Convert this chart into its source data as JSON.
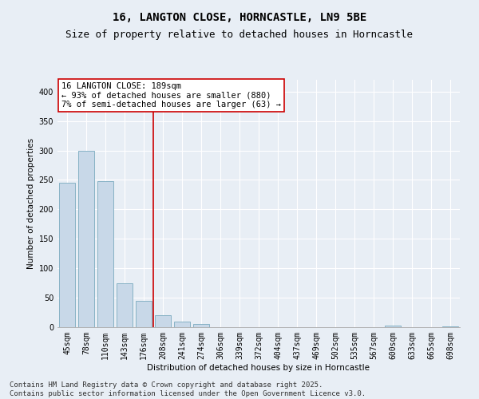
{
  "title_line1": "16, LANGTON CLOSE, HORNCASTLE, LN9 5BE",
  "title_line2": "Size of property relative to detached houses in Horncastle",
  "xlabel": "Distribution of detached houses by size in Horncastle",
  "ylabel": "Number of detached properties",
  "categories": [
    "45sqm",
    "78sqm",
    "110sqm",
    "143sqm",
    "176sqm",
    "208sqm",
    "241sqm",
    "274sqm",
    "306sqm",
    "339sqm",
    "372sqm",
    "404sqm",
    "437sqm",
    "469sqm",
    "502sqm",
    "535sqm",
    "567sqm",
    "600sqm",
    "633sqm",
    "665sqm",
    "698sqm"
  ],
  "values": [
    245,
    300,
    248,
    75,
    45,
    20,
    9,
    6,
    0,
    0,
    0,
    0,
    0,
    0,
    0,
    0,
    0,
    3,
    0,
    0,
    2
  ],
  "bar_color": "#c8d8e8",
  "bar_edge_color": "#7aaabf",
  "vline_x_index": 4,
  "vline_color": "#cc0000",
  "annotation_text": "16 LANGTON CLOSE: 189sqm\n← 93% of detached houses are smaller (880)\n7% of semi-detached houses are larger (63) →",
  "annotation_box_color": "#ffffff",
  "annotation_box_edge_color": "#cc0000",
  "annotation_fontsize": 7.5,
  "ylim": [
    0,
    420
  ],
  "yticks": [
    0,
    50,
    100,
    150,
    200,
    250,
    300,
    350,
    400
  ],
  "background_color": "#e8eef5",
  "plot_background_color": "#e8eef5",
  "footer_line1": "Contains HM Land Registry data © Crown copyright and database right 2025.",
  "footer_line2": "Contains public sector information licensed under the Open Government Licence v3.0.",
  "title_fontsize": 10,
  "subtitle_fontsize": 9,
  "axis_label_fontsize": 7.5,
  "tick_fontsize": 7,
  "footer_fontsize": 6.5
}
